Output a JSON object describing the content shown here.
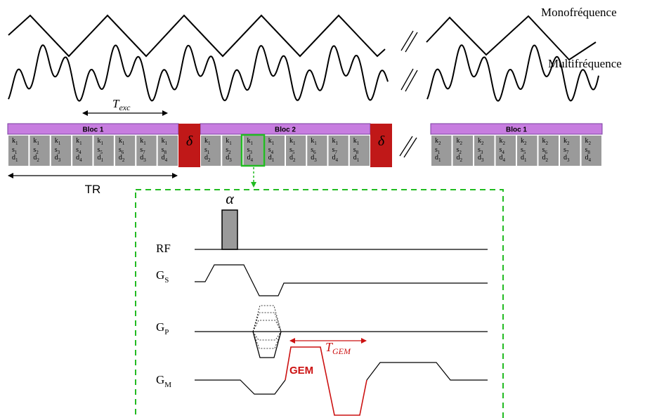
{
  "labels": {
    "mono": "Monofréquence",
    "multi": "Multifréquence",
    "t_exc_main": "T",
    "t_exc_sub": "exc",
    "tr": "TR",
    "delta": "δ",
    "alpha": "α",
    "rf": "RF",
    "g": "G",
    "gs_sub": "S",
    "gp_sub": "P",
    "gm_sub": "M",
    "gem": "GEM",
    "t_gem_main": "T",
    "t_gem_sub": "GEM"
  },
  "blocks": [
    {
      "title": "Bloc 1",
      "cells": [
        [
          "k1",
          "s1",
          "d1"
        ],
        [
          "k1",
          "s2",
          "d2"
        ],
        [
          "k1",
          "s3",
          "d3"
        ],
        [
          "k1",
          "s4",
          "d4"
        ],
        [
          "k1",
          "s5",
          "d1"
        ],
        [
          "k1",
          "s6",
          "d2"
        ],
        [
          "k1",
          "s7",
          "d3"
        ],
        [
          "k1",
          "s8",
          "d4"
        ]
      ]
    },
    {
      "title": "Bloc 2",
      "cells": [
        [
          "k1",
          "s1",
          "d2"
        ],
        [
          "k1",
          "s2",
          "d3"
        ],
        [
          "k1",
          "s3",
          "d4"
        ],
        [
          "k1",
          "s4",
          "d1"
        ],
        [
          "k1",
          "s5",
          "d2"
        ],
        [
          "k1",
          "s6",
          "d3"
        ],
        [
          "k1",
          "s7",
          "d4"
        ],
        [
          "k1",
          "s8",
          "d1"
        ]
      ]
    },
    {
      "title": "Bloc 1",
      "cells": [
        [
          "k2",
          "s1",
          "d1"
        ],
        [
          "k2",
          "s2",
          "d2"
        ],
        [
          "k2",
          "s3",
          "d3"
        ],
        [
          "k2",
          "s4",
          "d4"
        ],
        [
          "k2",
          "s5",
          "d1"
        ],
        [
          "k2",
          "s6",
          "d2"
        ],
        [
          "k2",
          "s7",
          "d3"
        ],
        [
          "k2",
          "s8",
          "d4"
        ]
      ]
    }
  ],
  "colors": {
    "bloc_title": "#c77de0",
    "cell": "#9a9a9a",
    "delta": "#c01818",
    "highlight": "#22bb22",
    "gem": "#cc1111",
    "pulse": "#9a9a9a"
  }
}
